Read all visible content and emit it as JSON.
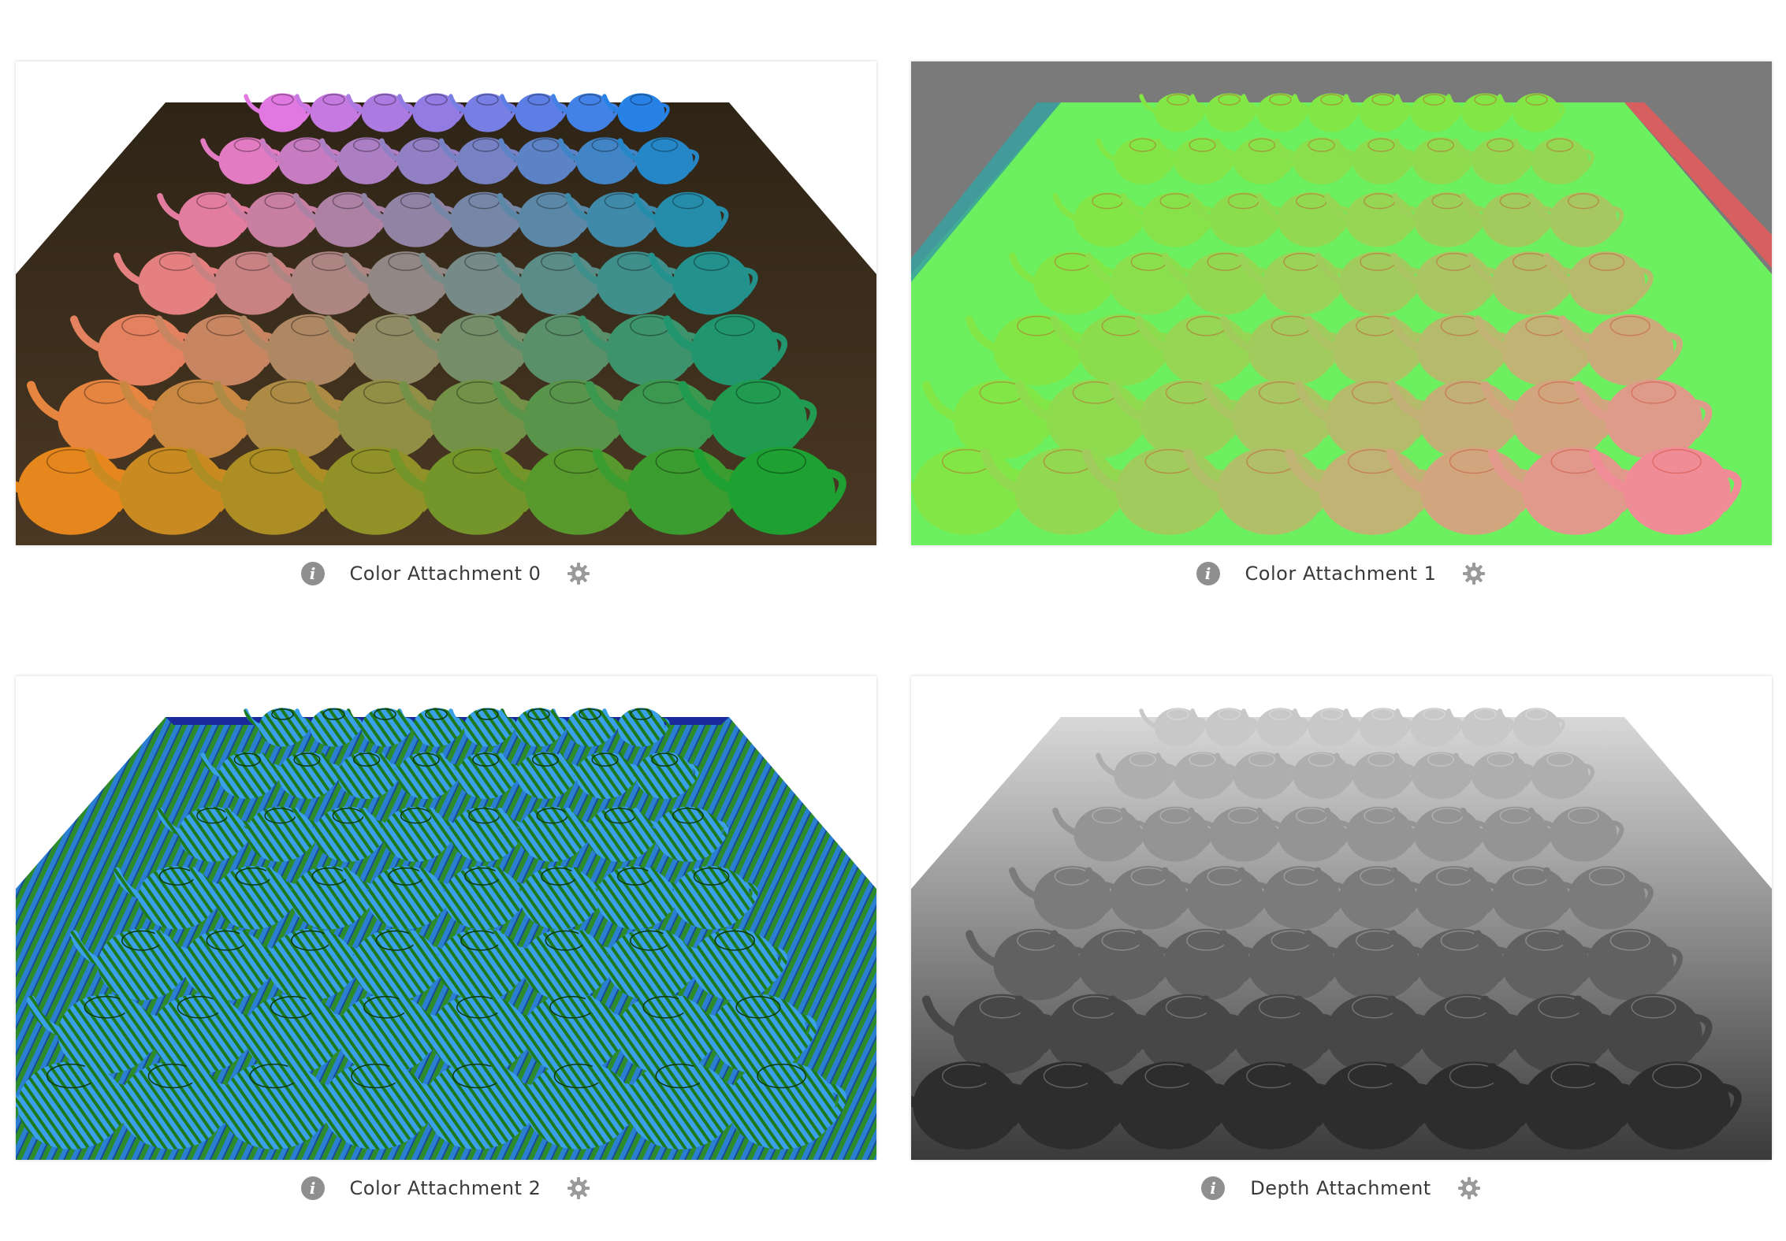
{
  "attachments": [
    {
      "id": "color0",
      "label": "Color Attachment 0"
    },
    {
      "id": "color1",
      "label": "Color Attachment 1"
    },
    {
      "id": "color2",
      "label": "Color Attachment 2"
    },
    {
      "id": "depth",
      "label": "Depth Attachment"
    }
  ],
  "icons": {
    "info": "i",
    "settings": "gear-icon"
  },
  "colors": {
    "wood": "#3a2c1a",
    "normal_green": "#6cf060",
    "grey_bg": "#7a7a7a",
    "icon_grey": "#8f8f8f"
  }
}
